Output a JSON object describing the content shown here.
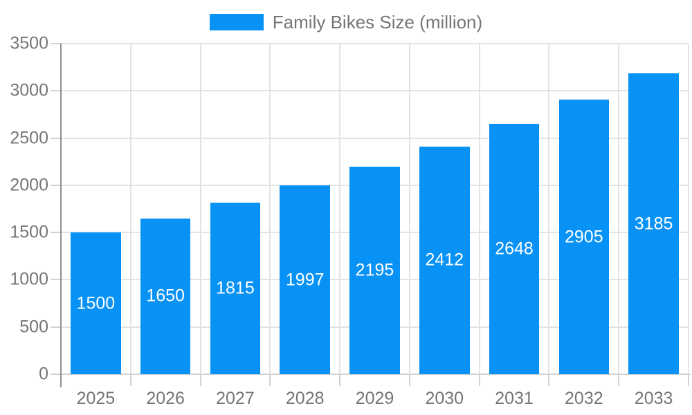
{
  "chart_data": {
    "type": "bar",
    "title": "Family Bikes Size (million)",
    "legend": {
      "label": "Family Bikes Size (million)",
      "position": "top"
    },
    "categories": [
      "2025",
      "2026",
      "2027",
      "2028",
      "2029",
      "2030",
      "2031",
      "2032",
      "2033"
    ],
    "series": [
      {
        "name": "Family Bikes Size (million)",
        "values": [
          1500,
          1650,
          1815,
          1997,
          2195,
          2412,
          2648,
          2905,
          3185
        ]
      }
    ],
    "value_labels_shown": true,
    "xlabel": "",
    "ylabel": "",
    "ylim": [
      0,
      3500
    ],
    "ytick_step": 500,
    "grid": true,
    "colors": {
      "bar": "#0892f6",
      "value_label_text": "#ffffff",
      "axis_text": "#757575",
      "legend_text": "#757575",
      "gridline": "#e3e3e3",
      "axis_line": "#8f8f8f",
      "tick_line": "#d2d2d2",
      "background": "#ffffff"
    }
  }
}
